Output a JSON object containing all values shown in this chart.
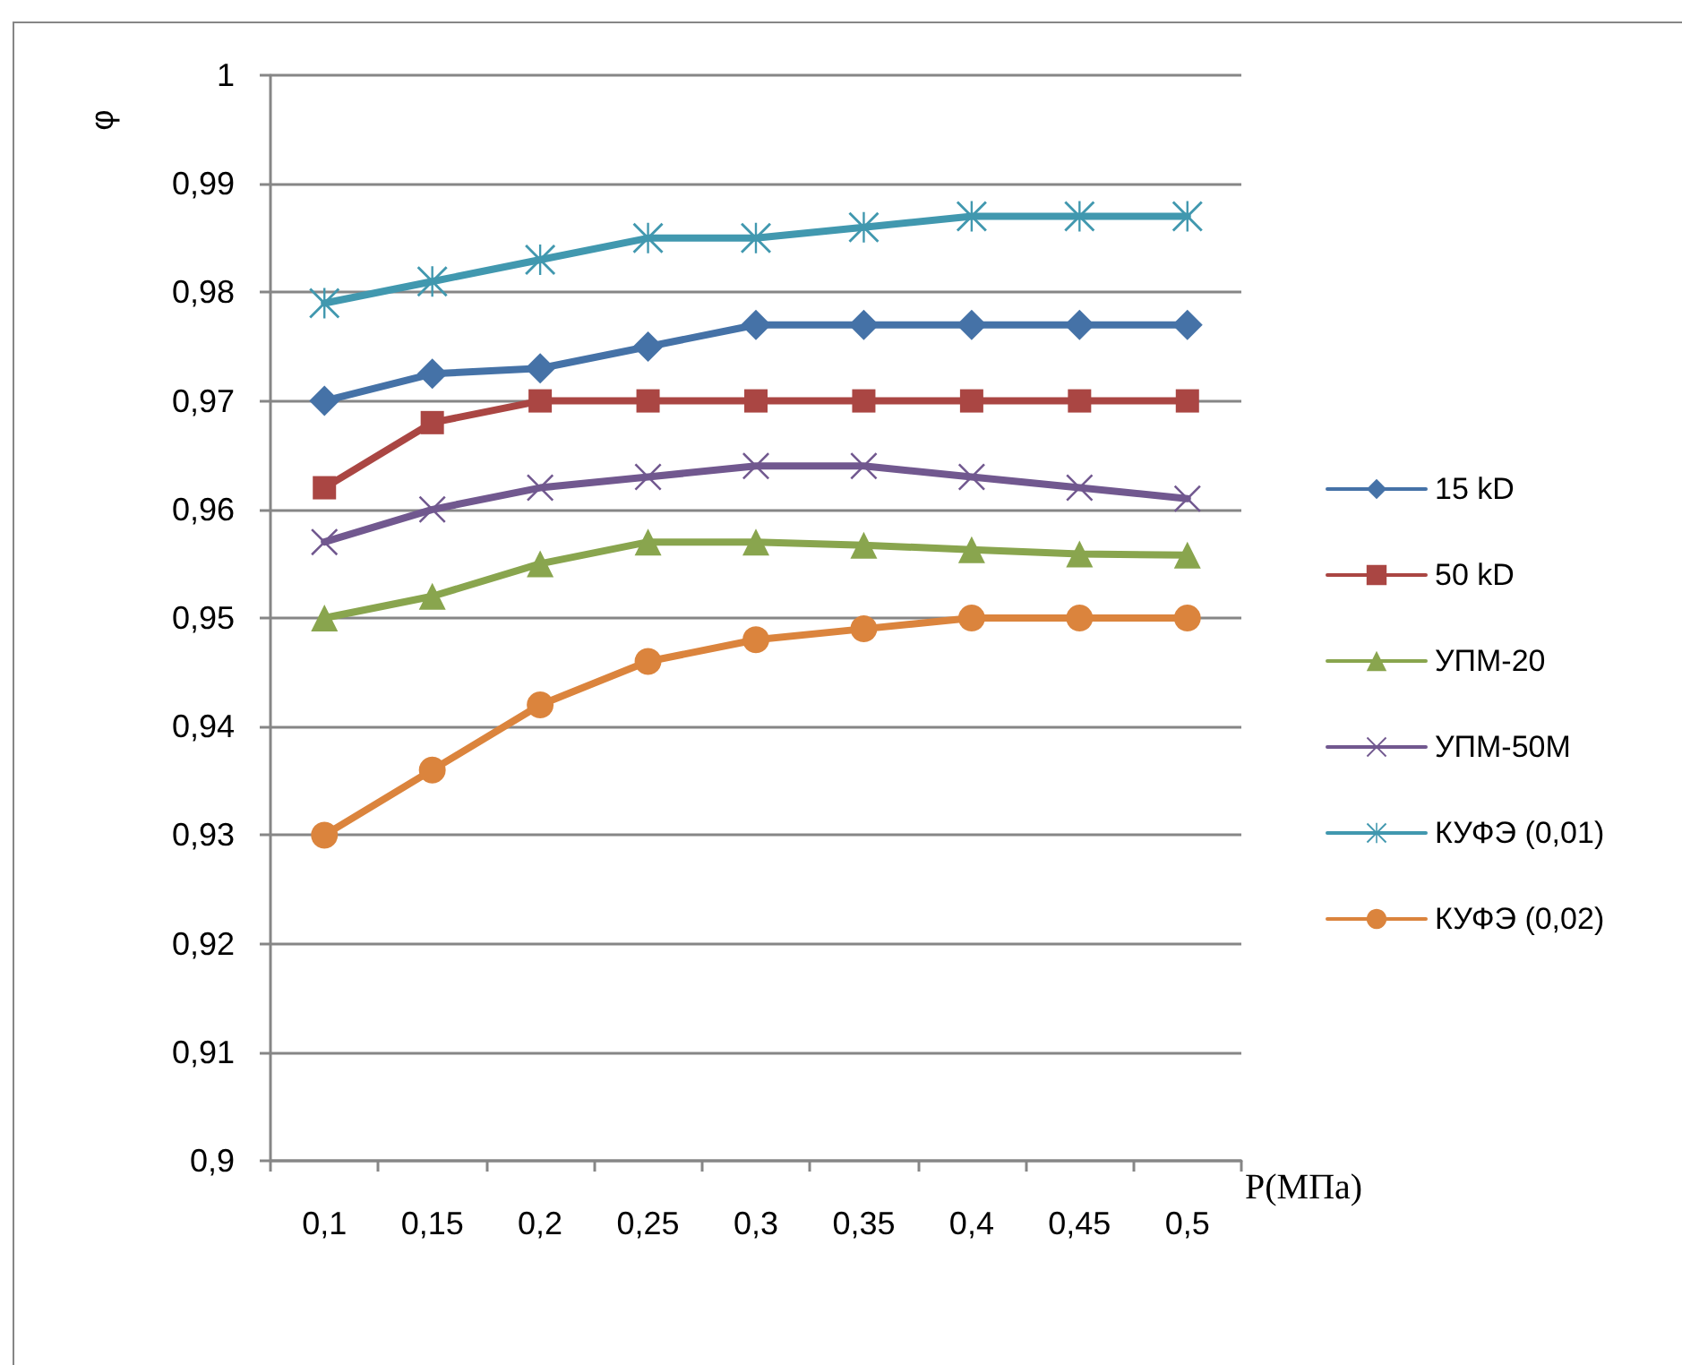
{
  "chart_data": {
    "type": "line",
    "ylabel": "φ",
    "xlabel": "P(МПа)",
    "categories": [
      "0,1",
      "0,15",
      "0,2",
      "0,25",
      "0,3",
      "0,35",
      "0,4",
      "0,45",
      "0,5"
    ],
    "ylim": [
      0.9,
      1
    ],
    "yticks": [
      {
        "value": 0.9,
        "label": "0,9"
      },
      {
        "value": 0.91,
        "label": "0,91"
      },
      {
        "value": 0.92,
        "label": "0,92"
      },
      {
        "value": 0.93,
        "label": "0,93"
      },
      {
        "value": 0.94,
        "label": "0,94"
      },
      {
        "value": 0.95,
        "label": "0,95"
      },
      {
        "value": 0.96,
        "label": "0,96"
      },
      {
        "value": 0.97,
        "label": "0,97"
      },
      {
        "value": 0.98,
        "label": "0,98"
      },
      {
        "value": 0.99,
        "label": "0,99"
      },
      1
    ],
    "grid": "y",
    "legend": "right",
    "series": [
      {
        "name": "15 kD",
        "color": "#4572a7",
        "marker": "diamond",
        "values": [
          0.97,
          0.9725,
          0.973,
          0.975,
          0.977,
          0.977,
          0.977,
          0.977,
          0.977
        ]
      },
      {
        "name": "50 kD",
        "color": "#aa4643",
        "marker": "square",
        "values": [
          0.962,
          0.968,
          0.97,
          0.97,
          0.97,
          0.97,
          0.97,
          0.97,
          0.97
        ]
      },
      {
        "name": "УПМ-20",
        "color": "#89a54e",
        "marker": "triangle",
        "values": [
          0.95,
          0.952,
          0.955,
          0.957,
          0.957,
          0.9567,
          0.9563,
          0.9559,
          0.9558
        ]
      },
      {
        "name": "УПМ-50М",
        "color": "#71588f",
        "marker": "cross",
        "values": [
          0.957,
          0.96,
          0.962,
          0.963,
          0.964,
          0.964,
          0.963,
          0.962,
          0.961
        ]
      },
      {
        "name": "КУФЭ (0,01)",
        "color": "#4198af",
        "marker": "star",
        "values": [
          0.979,
          0.981,
          0.983,
          0.985,
          0.985,
          0.986,
          0.987,
          0.987,
          0.987
        ]
      },
      {
        "name": "КУФЭ (0,02)",
        "color": "#db843d",
        "marker": "circle",
        "values": [
          0.93,
          0.936,
          0.942,
          0.946,
          0.948,
          0.949,
          0.95,
          0.95,
          0.95
        ]
      }
    ]
  }
}
